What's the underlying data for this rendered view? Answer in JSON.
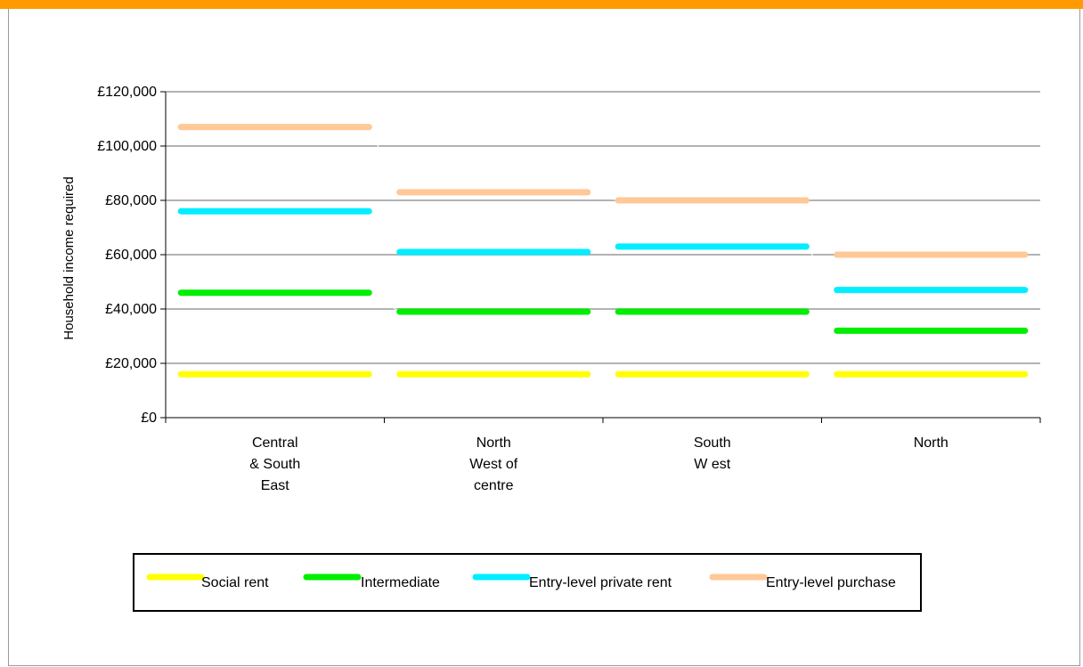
{
  "chart_data": {
    "type": "line",
    "title": "",
    "ylabel": "Household income required",
    "xlabel": "",
    "ylim": [
      0,
      120000
    ],
    "yticks": [
      0,
      20000,
      40000,
      60000,
      80000,
      100000,
      120000
    ],
    "ytick_labels": [
      "£0",
      "£20,000",
      "£40,000",
      "£60,000",
      "£80,000",
      "£100,000",
      "£120,000"
    ],
    "grid": true,
    "legend_position": "bottom",
    "categories": [
      [
        "Central",
        "& South",
        "East"
      ],
      [
        "North",
        "West of",
        "centre"
      ],
      [
        "South",
        "W est"
      ],
      [
        "North"
      ]
    ],
    "series": [
      {
        "name": "Social rent",
        "color": "#ffff00",
        "values": [
          16000,
          16000,
          16000,
          16000
        ]
      },
      {
        "name": "Intermediate",
        "color": "#00ee00",
        "values": [
          46000,
          39000,
          39000,
          32000
        ]
      },
      {
        "name": "Entry-level private rent",
        "color": "#00eeff",
        "values": [
          76000,
          61000,
          63000,
          47000
        ]
      },
      {
        "name": "Entry-level purchase",
        "color": "#ffc896",
        "values": [
          107000,
          83000,
          80000,
          60000
        ]
      }
    ]
  }
}
